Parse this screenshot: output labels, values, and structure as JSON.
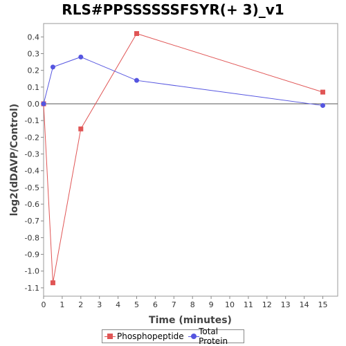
{
  "chart_data": {
    "type": "line",
    "title": "RLS#PPSSSSSSFSYR(+ 3)_v1",
    "xlabel": "Time (minutes)",
    "ylabel": "log2(dDAVP/Control)",
    "xlim": [
      0,
      15.8
    ],
    "ylim": [
      -1.15,
      0.48
    ],
    "x_ticks": [
      0,
      1,
      2,
      3,
      4,
      5,
      6,
      7,
      8,
      9,
      10,
      11,
      12,
      13,
      14,
      15
    ],
    "y_ticks": [
      0.4,
      0.3,
      0.2,
      0.1,
      0.0,
      -0.1,
      -0.2,
      -0.3,
      -0.4,
      -0.5,
      -0.6,
      -0.7,
      -0.8,
      -0.9,
      -1.0,
      -1.1
    ],
    "y_tick_labels": [
      "0.4",
      "0.3",
      "0.2",
      "0.1",
      "0.0",
      "-0.1",
      "-0.2",
      "-0.3",
      "-0.4",
      "-0.5",
      "-0.6",
      "-0.7",
      "-0.8",
      "-0.9",
      "-1.0",
      "-1.1"
    ],
    "grid": false,
    "zero_line": true,
    "legend_position": "bottom-center",
    "series": [
      {
        "name": "Phosphopeptide",
        "color": "#e05555",
        "marker": "square",
        "points": [
          {
            "x": 0,
            "y": 0.0
          },
          {
            "x": 0.5,
            "y": -1.07
          },
          {
            "x": 2,
            "y": -0.15
          },
          {
            "x": 5,
            "y": 0.42
          },
          {
            "x": 15,
            "y": 0.07
          }
        ]
      },
      {
        "name": "Total Protein",
        "color": "#5555e0",
        "marker": "circle",
        "points": [
          {
            "x": 0,
            "y": 0.0
          },
          {
            "x": 0.5,
            "y": 0.22
          },
          {
            "x": 2,
            "y": 0.28
          },
          {
            "x": 5,
            "y": 0.14
          },
          {
            "x": 15,
            "y": -0.01
          }
        ]
      }
    ]
  }
}
